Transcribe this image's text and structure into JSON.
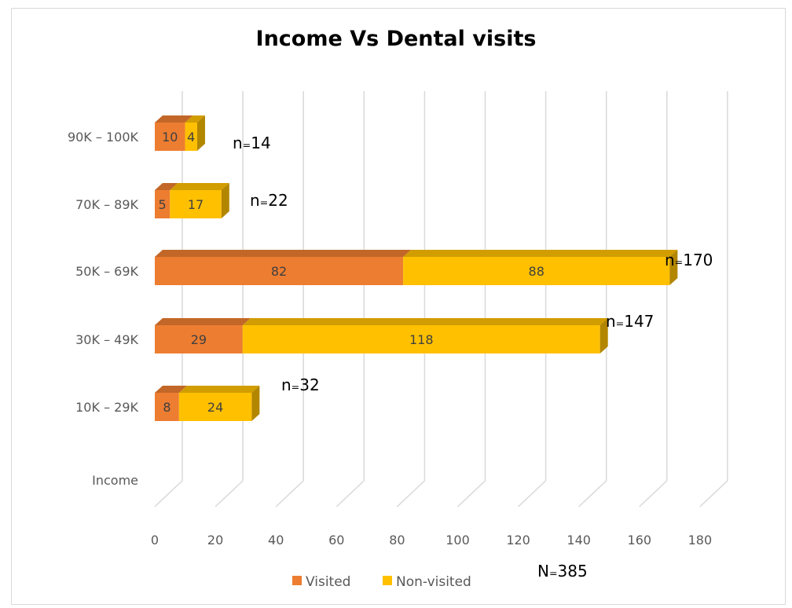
{
  "chart_data": {
    "type": "bar",
    "orientation": "horizontal",
    "stacked": true,
    "style": "3d",
    "title": "Income Vs Dental visits",
    "categories": [
      "Income",
      "10K – 29K",
      "30K – 49K",
      "50K – 69K",
      "70K – 89K",
      "90K – 100K"
    ],
    "series": [
      {
        "name": "Visited",
        "color": "#ED7D31",
        "values": [
          null,
          8,
          29,
          82,
          5,
          10
        ]
      },
      {
        "name": "Non-visited",
        "color": "#FFC000",
        "values": [
          null,
          24,
          118,
          88,
          17,
          4
        ]
      }
    ],
    "group_totals": [
      "",
      "n=32",
      "n=147",
      "n=170",
      "n=22",
      "n=14"
    ],
    "overall_total": "N=385",
    "xlim": [
      0,
      180
    ],
    "xticks": [
      0,
      20,
      40,
      60,
      80,
      100,
      120,
      140,
      160,
      180
    ],
    "grid": true,
    "legend_position": "bottom"
  }
}
